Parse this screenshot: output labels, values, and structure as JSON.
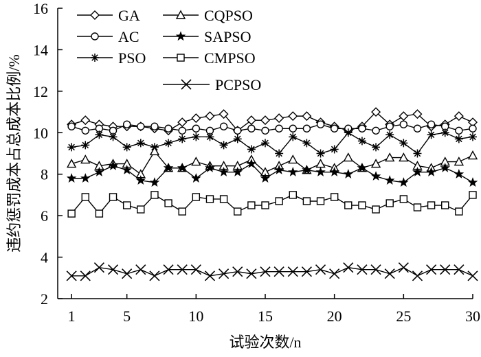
{
  "chart_data": {
    "type": "line",
    "title": "",
    "xlabel": "试验次数/n",
    "ylabel": "违约惩罚成本占总成本比例/%",
    "xlim": [
      0,
      30
    ],
    "ylim": [
      2,
      16
    ],
    "xticks": [
      1,
      5,
      10,
      15,
      20,
      25,
      30
    ],
    "yticks": [
      2,
      4,
      6,
      8,
      10,
      12,
      14,
      16
    ],
    "grid": false,
    "legend_position": "top-left",
    "x": [
      1,
      2,
      3,
      4,
      5,
      6,
      7,
      8,
      9,
      10,
      11,
      12,
      13,
      14,
      15,
      16,
      17,
      18,
      19,
      20,
      21,
      22,
      23,
      24,
      25,
      26,
      27,
      28,
      29,
      30
    ],
    "series": [
      {
        "name": "GA",
        "marker": "diamond",
        "values": [
          10.4,
          10.6,
          10.4,
          10.3,
          10.3,
          10.3,
          10.2,
          10.1,
          10.5,
          10.7,
          10.8,
          10.9,
          10.1,
          10.6,
          10.6,
          10.7,
          10.8,
          10.8,
          10.5,
          10.3,
          10.1,
          10.3,
          11.0,
          10.4,
          10.8,
          10.9,
          10.3,
          10.4,
          10.8,
          10.5
        ]
      },
      {
        "name": "AC",
        "marker": "circle",
        "values": [
          10.3,
          10.1,
          10.2,
          10.1,
          10.4,
          10.3,
          10.3,
          10.2,
          10.1,
          10.2,
          10.1,
          10.3,
          10.1,
          10.2,
          10.1,
          10.2,
          10.2,
          10.2,
          10.4,
          10.2,
          10.2,
          10.2,
          10.1,
          10.3,
          10.4,
          10.2,
          10.4,
          10.3,
          10.1,
          10.2
        ]
      },
      {
        "name": "PSO",
        "marker": "asterisk",
        "values": [
          9.3,
          9.4,
          9.9,
          9.8,
          9.3,
          9.5,
          9.3,
          9.5,
          9.7,
          9.8,
          9.8,
          9.4,
          9.7,
          9.2,
          9.5,
          9.0,
          9.8,
          9.5,
          9.0,
          9.2,
          10.0,
          9.6,
          9.3,
          9.9,
          9.5,
          9.0,
          9.9,
          10.0,
          9.7,
          9.8
        ]
      },
      {
        "name": "CQPSO",
        "marker": "triangle",
        "values": [
          8.5,
          8.7,
          8.4,
          8.5,
          8.5,
          8.0,
          9.1,
          8.3,
          8.3,
          8.6,
          8.4,
          8.4,
          8.4,
          8.7,
          8.1,
          8.4,
          8.7,
          8.2,
          8.5,
          8.3,
          8.8,
          8.3,
          8.5,
          8.8,
          8.8,
          8.4,
          8.3,
          8.6,
          8.6,
          8.9
        ]
      },
      {
        "name": "SAPSO",
        "marker": "star",
        "values": [
          7.8,
          7.8,
          8.1,
          8.4,
          8.2,
          7.7,
          7.6,
          8.3,
          8.3,
          7.8,
          8.3,
          8.1,
          8.1,
          8.5,
          7.8,
          8.2,
          8.1,
          8.2,
          8.1,
          8.1,
          8.0,
          8.3,
          7.9,
          7.7,
          7.6,
          8.1,
          8.1,
          8.3,
          8.0,
          7.6
        ]
      },
      {
        "name": "CMPSO",
        "marker": "square",
        "values": [
          6.1,
          6.9,
          6.1,
          6.9,
          6.5,
          6.3,
          7.0,
          6.6,
          6.2,
          6.9,
          6.8,
          6.8,
          6.2,
          6.5,
          6.5,
          6.7,
          7.0,
          6.7,
          6.7,
          6.9,
          6.5,
          6.5,
          6.3,
          6.6,
          6.8,
          6.4,
          6.5,
          6.5,
          6.2,
          7.0
        ]
      },
      {
        "name": "PCPSO",
        "marker": "x",
        "values": [
          3.1,
          3.1,
          3.5,
          3.4,
          3.2,
          3.4,
          3.1,
          3.4,
          3.4,
          3.4,
          3.1,
          3.2,
          3.3,
          3.2,
          3.3,
          3.3,
          3.3,
          3.3,
          3.4,
          3.2,
          3.5,
          3.4,
          3.4,
          3.2,
          3.5,
          3.1,
          3.4,
          3.4,
          3.4,
          3.1
        ]
      }
    ]
  }
}
